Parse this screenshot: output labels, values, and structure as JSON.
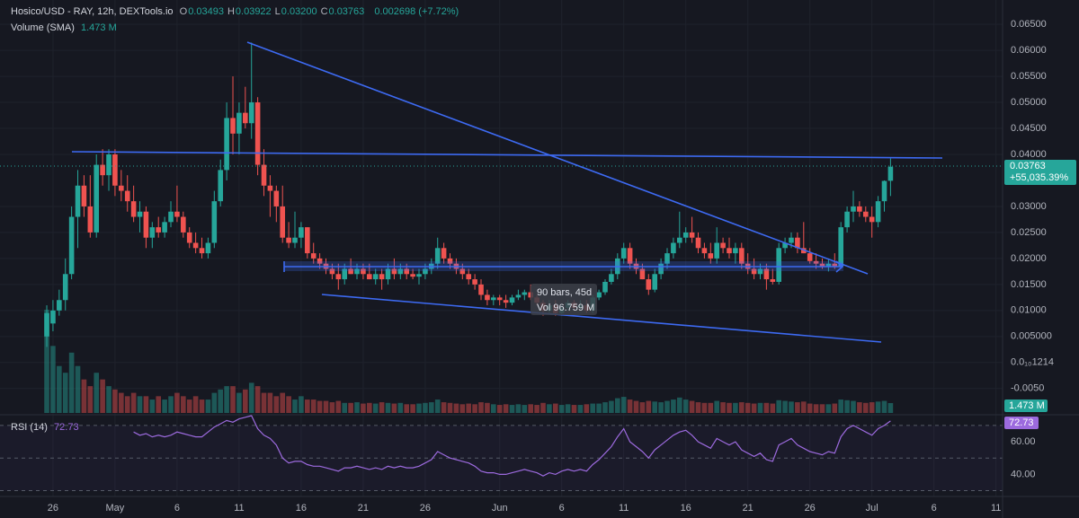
{
  "chart_data": {
    "type": "candlestick",
    "header": {
      "symbol": "Hosico/USD - RAY, 12h, DEXTools.io",
      "ohlc_labels": [
        {
          "key": "O",
          "value": "0.03493"
        },
        {
          "key": "H",
          "value": "0.03922"
        },
        {
          "key": "L",
          "value": "0.03200"
        },
        {
          "key": "C",
          "value": "0.03763"
        }
      ],
      "change": "0.002698 (+7.72%)"
    },
    "last_price_label": "0.03763",
    "change_label": "+55,035.39%",
    "up_color": "#26a69a",
    "down_color": "#ef5350",
    "grid": true,
    "xlim": [
      -7.54,
      154.06
    ],
    "xticks": [
      {
        "value": 1,
        "label": "26"
      },
      {
        "value": 11,
        "label": "May"
      },
      {
        "value": 21,
        "label": "6"
      },
      {
        "value": 31,
        "label": "11"
      },
      {
        "value": 41,
        "label": "16"
      },
      {
        "value": 51,
        "label": "21"
      },
      {
        "value": 61,
        "label": "26"
      },
      {
        "value": 73,
        "label": "Jun"
      },
      {
        "value": 83,
        "label": "6"
      },
      {
        "value": 93,
        "label": "11"
      },
      {
        "value": 103,
        "label": "16"
      },
      {
        "value": 113,
        "label": "21"
      },
      {
        "value": 123,
        "label": "26"
      },
      {
        "value": 133,
        "label": "Jul"
      },
      {
        "value": 143,
        "label": "6"
      },
      {
        "value": 153,
        "label": "11"
      }
    ],
    "ylim": [
      -0.0097,
      0.0683
    ],
    "yticks": [
      {
        "value": 0.065,
        "label": "0.06500"
      },
      {
        "value": 0.06,
        "label": "0.06000"
      },
      {
        "value": 0.055,
        "label": "0.05500"
      },
      {
        "value": 0.05,
        "label": "0.05000"
      },
      {
        "value": 0.045,
        "label": "0.04500"
      },
      {
        "value": 0.04,
        "label": "0.04000"
      },
      {
        "value": 0.03,
        "label": "0.03000"
      },
      {
        "value": 0.025,
        "label": "0.02500"
      },
      {
        "value": 0.02,
        "label": "0.02000"
      },
      {
        "value": 0.015,
        "label": "0.01500"
      },
      {
        "value": 0.01,
        "label": "0.01000"
      },
      {
        "value": 0.005,
        "label": "0.005000"
      },
      {
        "value": 1.214e-10,
        "label": "0.0₁₀1214"
      },
      {
        "value": -0.005,
        "label": "-0.0050"
      }
    ],
    "ohlc": [
      [
        0.005,
        0.011,
        0.003,
        0.0095
      ],
      [
        0.0075,
        0.012,
        0.006,
        0.01
      ],
      [
        0.01,
        0.014,
        0.009,
        0.012
      ],
      [
        0.012,
        0.02,
        0.01,
        0.017
      ],
      [
        0.017,
        0.03,
        0.016,
        0.028
      ],
      [
        0.028,
        0.037,
        0.022,
        0.034
      ],
      [
        0.034,
        0.036,
        0.028,
        0.03
      ],
      [
        0.03,
        0.036,
        0.024,
        0.025
      ],
      [
        0.025,
        0.04,
        0.024,
        0.038
      ],
      [
        0.038,
        0.041,
        0.034,
        0.036
      ],
      [
        0.036,
        0.041,
        0.033,
        0.04
      ],
      [
        0.04,
        0.041,
        0.032,
        0.034
      ],
      [
        0.034,
        0.037,
        0.031,
        0.033
      ],
      [
        0.033,
        0.036,
        0.029,
        0.031
      ],
      [
        0.031,
        0.034,
        0.027,
        0.028
      ],
      [
        0.028,
        0.031,
        0.025,
        0.029
      ],
      [
        0.029,
        0.03,
        0.022,
        0.024
      ],
      [
        0.024,
        0.027,
        0.022,
        0.026
      ],
      [
        0.026,
        0.028,
        0.024,
        0.025
      ],
      [
        0.025,
        0.028,
        0.024,
        0.027
      ],
      [
        0.027,
        0.031,
        0.026,
        0.029
      ],
      [
        0.029,
        0.034,
        0.027,
        0.028
      ],
      [
        0.028,
        0.029,
        0.024,
        0.025
      ],
      [
        0.025,
        0.026,
        0.022,
        0.023
      ],
      [
        0.023,
        0.025,
        0.021,
        0.022
      ],
      [
        0.022,
        0.024,
        0.02,
        0.021
      ],
      [
        0.021,
        0.024,
        0.02,
        0.023
      ],
      [
        0.023,
        0.033,
        0.022,
        0.031
      ],
      [
        0.031,
        0.039,
        0.03,
        0.037
      ],
      [
        0.037,
        0.05,
        0.035,
        0.047
      ],
      [
        0.047,
        0.055,
        0.04,
        0.044
      ],
      [
        0.044,
        0.05,
        0.04,
        0.048
      ],
      [
        0.048,
        0.053,
        0.045,
        0.046
      ],
      [
        0.046,
        0.0615,
        0.043,
        0.05
      ],
      [
        0.05,
        0.051,
        0.036,
        0.038
      ],
      [
        0.038,
        0.041,
        0.032,
        0.034
      ],
      [
        0.034,
        0.036,
        0.028,
        0.033
      ],
      [
        0.033,
        0.034,
        0.027,
        0.03
      ],
      [
        0.03,
        0.034,
        0.023,
        0.024
      ],
      [
        0.024,
        0.027,
        0.022,
        0.023
      ],
      [
        0.023,
        0.029,
        0.022,
        0.024
      ],
      [
        0.024,
        0.027,
        0.022,
        0.026
      ],
      [
        0.026,
        0.026,
        0.02,
        0.021
      ],
      [
        0.021,
        0.023,
        0.019,
        0.02
      ],
      [
        0.02,
        0.021,
        0.018,
        0.019
      ],
      [
        0.019,
        0.02,
        0.017,
        0.018
      ],
      [
        0.018,
        0.019,
        0.016,
        0.017
      ],
      [
        0.017,
        0.019,
        0.014,
        0.016
      ],
      [
        0.016,
        0.019,
        0.015,
        0.018
      ],
      [
        0.018,
        0.02,
        0.017,
        0.017
      ],
      [
        0.017,
        0.019,
        0.016,
        0.018
      ],
      [
        0.018,
        0.019,
        0.016,
        0.017
      ],
      [
        0.017,
        0.019,
        0.016,
        0.016
      ],
      [
        0.016,
        0.018,
        0.015,
        0.017
      ],
      [
        0.017,
        0.018,
        0.014,
        0.016
      ],
      [
        0.016,
        0.019,
        0.015,
        0.018
      ],
      [
        0.018,
        0.02,
        0.016,
        0.017
      ],
      [
        0.017,
        0.019,
        0.016,
        0.018
      ],
      [
        0.018,
        0.019,
        0.016,
        0.017
      ],
      [
        0.017,
        0.018,
        0.016,
        0.0165
      ],
      [
        0.0165,
        0.018,
        0.015,
        0.017
      ],
      [
        0.017,
        0.019,
        0.016,
        0.018
      ],
      [
        0.018,
        0.02,
        0.017,
        0.019
      ],
      [
        0.019,
        0.024,
        0.018,
        0.022
      ],
      [
        0.022,
        0.023,
        0.019,
        0.02
      ],
      [
        0.02,
        0.021,
        0.018,
        0.019
      ],
      [
        0.019,
        0.02,
        0.017,
        0.018
      ],
      [
        0.018,
        0.019,
        0.016,
        0.017
      ],
      [
        0.017,
        0.018,
        0.015,
        0.016
      ],
      [
        0.016,
        0.017,
        0.014,
        0.015
      ],
      [
        0.015,
        0.016,
        0.012,
        0.013
      ],
      [
        0.013,
        0.014,
        0.011,
        0.012
      ],
      [
        0.012,
        0.013,
        0.011,
        0.0125
      ],
      [
        0.0125,
        0.013,
        0.011,
        0.012
      ],
      [
        0.012,
        0.013,
        0.0105,
        0.0115
      ],
      [
        0.0115,
        0.013,
        0.011,
        0.0125
      ],
      [
        0.0125,
        0.014,
        0.012,
        0.013
      ],
      [
        0.013,
        0.014,
        0.012,
        0.0135
      ],
      [
        0.0135,
        0.015,
        0.012,
        0.0125
      ],
      [
        0.0125,
        0.013,
        0.011,
        0.0115
      ],
      [
        0.0115,
        0.012,
        0.009,
        0.01
      ],
      [
        0.01,
        0.012,
        0.0095,
        0.011
      ],
      [
        0.011,
        0.012,
        0.009,
        0.0095
      ],
      [
        0.0095,
        0.011,
        0.009,
        0.0105
      ],
      [
        0.0105,
        0.012,
        0.01,
        0.0115
      ],
      [
        0.0115,
        0.012,
        0.01,
        0.0105
      ],
      [
        0.0105,
        0.012,
        0.01,
        0.011
      ],
      [
        0.011,
        0.012,
        0.0095,
        0.01
      ],
      [
        0.01,
        0.013,
        0.0095,
        0.0125
      ],
      [
        0.0125,
        0.014,
        0.012,
        0.0135
      ],
      [
        0.0135,
        0.016,
        0.013,
        0.0155
      ],
      [
        0.0155,
        0.018,
        0.015,
        0.017
      ],
      [
        0.017,
        0.021,
        0.016,
        0.02
      ],
      [
        0.02,
        0.023,
        0.019,
        0.022
      ],
      [
        0.022,
        0.023,
        0.018,
        0.019
      ],
      [
        0.019,
        0.02,
        0.017,
        0.018
      ],
      [
        0.018,
        0.019,
        0.016,
        0.016
      ],
      [
        0.016,
        0.017,
        0.013,
        0.014
      ],
      [
        0.014,
        0.018,
        0.0135,
        0.017
      ],
      [
        0.017,
        0.02,
        0.016,
        0.019
      ],
      [
        0.019,
        0.022,
        0.018,
        0.021
      ],
      [
        0.021,
        0.024,
        0.02,
        0.023
      ],
      [
        0.023,
        0.029,
        0.022,
        0.024
      ],
      [
        0.024,
        0.026,
        0.023,
        0.025
      ],
      [
        0.025,
        0.028,
        0.023,
        0.024
      ],
      [
        0.024,
        0.025,
        0.021,
        0.022
      ],
      [
        0.022,
        0.023,
        0.02,
        0.021
      ],
      [
        0.021,
        0.023,
        0.019,
        0.02
      ],
      [
        0.02,
        0.026,
        0.019,
        0.023
      ],
      [
        0.023,
        0.024,
        0.021,
        0.022
      ],
      [
        0.022,
        0.024,
        0.02,
        0.021
      ],
      [
        0.021,
        0.023,
        0.019,
        0.022
      ],
      [
        0.022,
        0.023,
        0.018,
        0.019
      ],
      [
        0.019,
        0.021,
        0.017,
        0.018
      ],
      [
        0.018,
        0.02,
        0.016,
        0.017
      ],
      [
        0.017,
        0.019,
        0.016,
        0.018
      ],
      [
        0.018,
        0.019,
        0.014,
        0.016
      ],
      [
        0.016,
        0.018,
        0.015,
        0.0155
      ],
      [
        0.0155,
        0.023,
        0.015,
        0.022
      ],
      [
        0.022,
        0.024,
        0.021,
        0.023
      ],
      [
        0.023,
        0.025,
        0.022,
        0.024
      ],
      [
        0.024,
        0.025,
        0.021,
        0.022
      ],
      [
        0.022,
        0.027,
        0.021,
        0.021
      ],
      [
        0.021,
        0.022,
        0.019,
        0.0195
      ],
      [
        0.0195,
        0.021,
        0.018,
        0.019
      ],
      [
        0.019,
        0.02,
        0.018,
        0.0185
      ],
      [
        0.0185,
        0.02,
        0.0175,
        0.019
      ],
      [
        0.019,
        0.021,
        0.018,
        0.0185
      ],
      [
        0.0185,
        0.027,
        0.018,
        0.026
      ],
      [
        0.026,
        0.03,
        0.025,
        0.029
      ],
      [
        0.029,
        0.033,
        0.027,
        0.03
      ],
      [
        0.03,
        0.031,
        0.028,
        0.029
      ],
      [
        0.029,
        0.03,
        0.027,
        0.028
      ],
      [
        0.028,
        0.03,
        0.024,
        0.027
      ],
      [
        0.027,
        0.032,
        0.026,
        0.031
      ],
      [
        0.031,
        0.035,
        0.029,
        0.0349
      ],
      [
        0.03493,
        0.03922,
        0.032,
        0.03763
      ]
    ],
    "volume": {
      "name": "Volume (SMA)",
      "label": "1.473 M",
      "values": [
        15.4,
        10,
        7,
        6,
        9,
        7,
        5,
        4,
        6,
        5,
        4,
        3.5,
        3,
        2.5,
        3,
        2.5,
        2.5,
        2,
        2.5,
        2,
        2.5,
        3,
        2.5,
        2,
        2.5,
        2,
        2,
        3,
        3.5,
        4,
        4,
        3,
        3.5,
        4.5,
        4,
        3,
        3,
        2.5,
        3,
        2.5,
        2,
        2.5,
        2,
        2,
        1.8,
        1.8,
        1.6,
        1.8,
        1.5,
        1.5,
        1.6,
        1.4,
        1.5,
        1.4,
        1.6,
        1.5,
        1.4,
        1.5,
        1.3,
        1.3,
        1.4,
        1.5,
        1.6,
        2,
        1.6,
        1.5,
        1.4,
        1.3,
        1.4,
        1.3,
        1.6,
        1.5,
        1.3,
        1.2,
        1.3,
        1.2,
        1.3,
        1.2,
        1.3,
        1.2,
        1.5,
        1.3,
        1.4,
        1.2,
        1.3,
        1.2,
        1.2,
        1.3,
        1.4,
        1.4,
        1.6,
        1.8,
        2.2,
        2.4,
        2,
        1.8,
        1.6,
        1.8,
        1.7,
        1.6,
        1.8,
        2,
        2.3,
        2,
        1.8,
        1.6,
        1.5,
        1.5,
        1.8,
        1.6,
        1.5,
        1.5,
        1.6,
        1.5,
        1.4,
        1.5,
        1.5,
        1.4,
        1.9,
        1.8,
        1.7,
        1.6,
        1.7,
        1.4,
        1.3,
        1.3,
        1.3,
        1.4,
        2,
        1.9,
        1.8,
        1.6,
        1.5,
        1.6,
        1.7,
        1.8,
        1.473
      ]
    },
    "rsi": {
      "name": "RSI (14)",
      "color": "#9c6ade",
      "ylim": [
        27,
        76
      ],
      "yticks": [
        {
          "value": 60,
          "label": "60.00"
        },
        {
          "value": 40,
          "label": "40.00"
        }
      ],
      "bands": [
        70,
        50,
        30
      ],
      "values": [
        null,
        null,
        null,
        null,
        null,
        null,
        null,
        null,
        null,
        null,
        null,
        null,
        null,
        null,
        66,
        64,
        65,
        63,
        64,
        63,
        64,
        66,
        65,
        64,
        63,
        63,
        66,
        69,
        71,
        73,
        72,
        74,
        75,
        76,
        68,
        64,
        62,
        58,
        50,
        47,
        48,
        48,
        46,
        45,
        45,
        44,
        43,
        42,
        44,
        44,
        45,
        44,
        43,
        44,
        43,
        45,
        44,
        45,
        44,
        44,
        45,
        47,
        49,
        54,
        52,
        50,
        49,
        48,
        47,
        45,
        42,
        41,
        41,
        40,
        40,
        41,
        42,
        43,
        42,
        41,
        39,
        41,
        40,
        42,
        43,
        42,
        43,
        42,
        46,
        49,
        53,
        57,
        63,
        68,
        60,
        57,
        54,
        50,
        55,
        58,
        61,
        64,
        66,
        67,
        64,
        60,
        58,
        56,
        62,
        60,
        58,
        60,
        55,
        53,
        51,
        53,
        49,
        48,
        58,
        60,
        62,
        58,
        56,
        54,
        53,
        52,
        54,
        53,
        63,
        68,
        70,
        68,
        66,
        64,
        68,
        70,
        72.73
      ]
    },
    "annotations": {
      "range_bars": "90 bars, 45d",
      "range_volume": "Vol 96.759 M"
    }
  }
}
